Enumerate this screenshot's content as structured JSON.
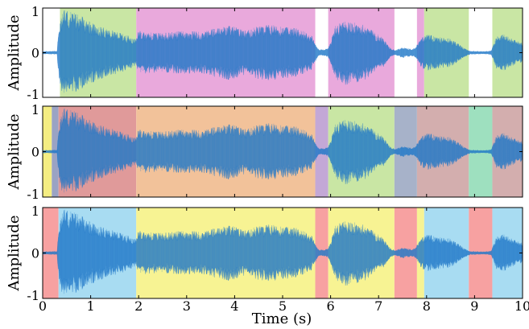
{
  "chart_data": {
    "type": "area",
    "description_free": true,
    "xlabel": "Time (s)",
    "xlim": [
      0,
      10
    ],
    "x_ticks": [
      "0",
      "1",
      "2",
      "3",
      "4",
      "5",
      "6",
      "7",
      "8",
      "9",
      "10"
    ],
    "x_tick_values": [
      0,
      1,
      2,
      3,
      4,
      5,
      6,
      7,
      8,
      9,
      10
    ],
    "waveform_envelope": {
      "t": [
        0,
        0.3,
        0.33,
        0.4,
        0.45,
        0.6,
        0.8,
        1.0,
        1.3,
        1.6,
        1.8,
        1.95,
        2.0,
        2.2,
        2.5,
        2.8,
        3.1,
        3.3,
        3.6,
        3.9,
        4.2,
        4.5,
        4.7,
        5.0,
        5.3,
        5.6,
        5.68,
        5.75,
        5.85,
        5.95,
        6.1,
        6.3,
        6.5,
        6.7,
        6.9,
        7.1,
        7.25,
        7.35,
        7.5,
        7.7,
        7.8,
        7.9,
        8.0,
        8.2,
        8.5,
        8.8,
        8.9,
        9.2,
        9.35,
        9.45,
        9.6,
        9.8,
        10.0
      ],
      "amplitude": [
        0.03,
        0.04,
        0.5,
        0.92,
        0.97,
        0.93,
        0.82,
        0.7,
        0.55,
        0.45,
        0.38,
        0.3,
        0.5,
        0.46,
        0.44,
        0.48,
        0.5,
        0.46,
        0.55,
        0.62,
        0.5,
        0.6,
        0.64,
        0.58,
        0.55,
        0.4,
        0.2,
        0.08,
        0.07,
        0.1,
        0.6,
        0.72,
        0.68,
        0.62,
        0.48,
        0.32,
        0.1,
        0.06,
        0.12,
        0.08,
        0.18,
        0.35,
        0.42,
        0.36,
        0.32,
        0.1,
        0.04,
        0.03,
        0.05,
        0.35,
        0.42,
        0.3,
        0.22
      ]
    },
    "subplots": [
      {
        "ylabel": "Amplitude",
        "ylim": [
          -1,
          1
        ],
        "y_ticks": [
          "1",
          "0",
          "-1"
        ],
        "y_tick_values": [
          1,
          0,
          -1
        ],
        "waveform_color": "#1f77c8",
        "segments": [
          {
            "start": 0.36,
            "end": 1.95,
            "color": "#c9e6a4"
          },
          {
            "start": 1.95,
            "end": 5.68,
            "color": "#e9a9dc"
          },
          {
            "start": 5.95,
            "end": 7.33,
            "color": "#e9a9dc"
          },
          {
            "start": 7.8,
            "end": 7.95,
            "color": "#e9a9dc"
          },
          {
            "start": 7.95,
            "end": 8.88,
            "color": "#c9e6a4"
          },
          {
            "start": 9.37,
            "end": 10.0,
            "color": "#c9e6a4"
          }
        ]
      },
      {
        "ylabel": "Amplitude",
        "ylim": [
          -1,
          1
        ],
        "y_ticks": [
          "1",
          "0",
          "-1"
        ],
        "y_tick_values": [
          1,
          0,
          -1
        ],
        "waveform_color": "#1f77c8",
        "segments": [
          {
            "start": 0.0,
            "end": 0.19,
            "color": "#f4ed82"
          },
          {
            "start": 0.19,
            "end": 0.33,
            "color": "#9aa3c4"
          },
          {
            "start": 0.33,
            "end": 1.95,
            "color": "#e09a9a"
          },
          {
            "start": 1.95,
            "end": 5.68,
            "color": "#f2c29a"
          },
          {
            "start": 5.68,
            "end": 5.95,
            "color": "#c3a8d6"
          },
          {
            "start": 5.95,
            "end": 7.33,
            "color": "#c9e6a4"
          },
          {
            "start": 7.33,
            "end": 7.8,
            "color": "#a7b2c9"
          },
          {
            "start": 7.8,
            "end": 8.88,
            "color": "#d3aeae"
          },
          {
            "start": 8.88,
            "end": 9.37,
            "color": "#9ee0bf"
          },
          {
            "start": 9.37,
            "end": 10.0,
            "color": "#d3aeae"
          }
        ]
      },
      {
        "ylabel": "Amplitude",
        "ylim": [
          -1,
          1
        ],
        "y_ticks": [
          "1",
          "0",
          "-1"
        ],
        "y_tick_values": [
          1,
          0,
          -1
        ],
        "waveform_color": "#1f77c8",
        "segments": [
          {
            "start": 0.0,
            "end": 0.33,
            "color": "#f7a1a1"
          },
          {
            "start": 0.33,
            "end": 1.95,
            "color": "#a8dcf2"
          },
          {
            "start": 1.95,
            "end": 5.68,
            "color": "#f7f393"
          },
          {
            "start": 5.68,
            "end": 5.95,
            "color": "#f7a1a1"
          },
          {
            "start": 5.95,
            "end": 7.33,
            "color": "#f7f393"
          },
          {
            "start": 7.33,
            "end": 7.8,
            "color": "#f7a1a1"
          },
          {
            "start": 7.8,
            "end": 7.95,
            "color": "#f7f393"
          },
          {
            "start": 7.95,
            "end": 8.88,
            "color": "#a8dcf2"
          },
          {
            "start": 8.88,
            "end": 9.37,
            "color": "#f7a1a1"
          },
          {
            "start": 9.37,
            "end": 10.0,
            "color": "#a8dcf2"
          }
        ]
      }
    ]
  }
}
